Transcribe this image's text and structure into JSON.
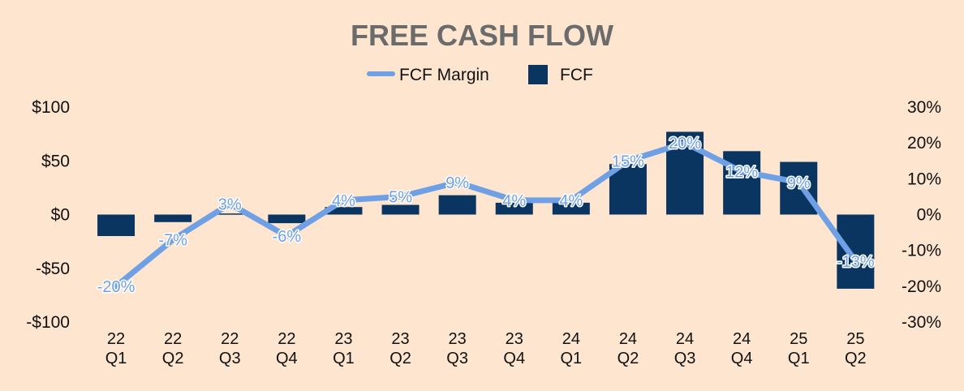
{
  "chart_data": {
    "type": "bar+line",
    "title": "FREE CASH FLOW",
    "categories": [
      [
        "22",
        "Q1"
      ],
      [
        "22",
        "Q2"
      ],
      [
        "22",
        "Q3"
      ],
      [
        "22",
        "Q4"
      ],
      [
        "23",
        "Q1"
      ],
      [
        "23",
        "Q2"
      ],
      [
        "23",
        "Q3"
      ],
      [
        "23",
        "Q4"
      ],
      [
        "24",
        "Q1"
      ],
      [
        "24",
        "Q2"
      ],
      [
        "24",
        "Q3"
      ],
      [
        "24",
        "Q4"
      ],
      [
        "25",
        "Q1"
      ],
      [
        "25",
        "Q2"
      ]
    ],
    "series": [
      {
        "name": "FCF",
        "type": "bar",
        "axis": "left",
        "color": "#0a3561",
        "values": [
          -20,
          -7,
          1,
          -8,
          7,
          9,
          18,
          11,
          11,
          47,
          77,
          59,
          49,
          -69
        ]
      },
      {
        "name": "FCF Margin",
        "type": "line",
        "axis": "right",
        "color": "#6fa0e6",
        "values": [
          -20,
          -7,
          3,
          -6,
          4,
          5,
          9,
          4,
          4,
          15,
          20,
          12,
          9,
          -13
        ],
        "labels": [
          "-20%",
          "-7%",
          "3%",
          "-6%",
          "4%",
          "5%",
          "9%",
          "4%",
          "4%",
          "15%",
          "20%",
          "12%",
          "9%",
          "-13%"
        ]
      }
    ],
    "legend": [
      "FCF Margin",
      "FCF"
    ],
    "legend_position": "top-center",
    "y_left": {
      "ylim": [
        -100,
        100
      ],
      "ticks": [
        100,
        50,
        0,
        -50,
        -100
      ],
      "tick_labels": [
        "$100",
        "$50",
        "$0",
        "-$50",
        "-$100"
      ]
    },
    "y_right": {
      "ylim": [
        -30,
        30
      ],
      "ticks": [
        30,
        20,
        10,
        0,
        -10,
        -20,
        -30
      ],
      "tick_labels": [
        "30%",
        "20%",
        "10%",
        "0%",
        "-10%",
        "-20%",
        "-30%"
      ]
    },
    "grid": false
  }
}
